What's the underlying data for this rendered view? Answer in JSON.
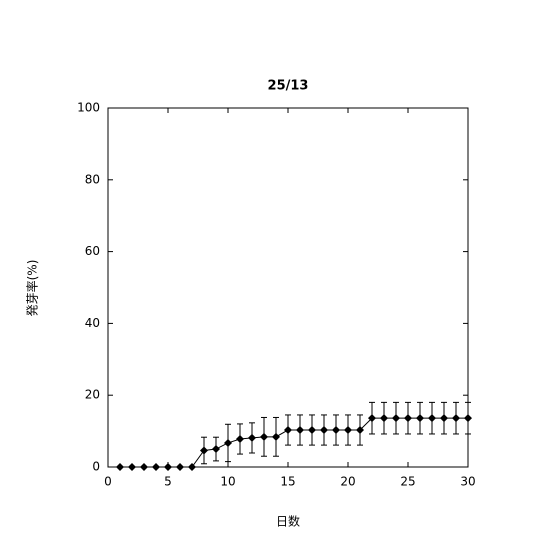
{
  "chart_data": {
    "type": "line",
    "title": "25/13",
    "x_label": "日数",
    "y_label": "発芽率(%)",
    "x": [
      1,
      2,
      3,
      4,
      5,
      6,
      7,
      8,
      9,
      10,
      11,
      12,
      13,
      14,
      15,
      16,
      17,
      18,
      19,
      20,
      21,
      22,
      23,
      24,
      25,
      26,
      27,
      28,
      29,
      30
    ],
    "series": [
      {
        "color": "#000000",
        "values": [
          0,
          0,
          0,
          0,
          0,
          0,
          0,
          4.6,
          5.0,
          6.7,
          7.8,
          8.1,
          8.4,
          8.4,
          10.3,
          10.3,
          10.3,
          10.3,
          10.3,
          10.3,
          10.3,
          13.6,
          13.6,
          13.6,
          13.6,
          13.6,
          13.6,
          13.6,
          13.6,
          13.6
        ],
        "errors": [
          0,
          0,
          0,
          0,
          0,
          0,
          0,
          3.7,
          3.3,
          5.2,
          4.2,
          4.2,
          5.4,
          5.4,
          4.2,
          4.2,
          4.2,
          4.2,
          4.2,
          4.2,
          4.2,
          4.4,
          4.4,
          4.4,
          4.4,
          4.4,
          4.4,
          4.4,
          4.4,
          4.4
        ]
      }
    ],
    "xlim": [
      0,
      30
    ],
    "xticks": [
      0,
      5,
      10,
      15,
      20,
      25,
      30
    ],
    "ylim": [
      0,
      100
    ],
    "yticks": [
      0,
      20,
      40,
      60,
      80,
      100
    ]
  }
}
